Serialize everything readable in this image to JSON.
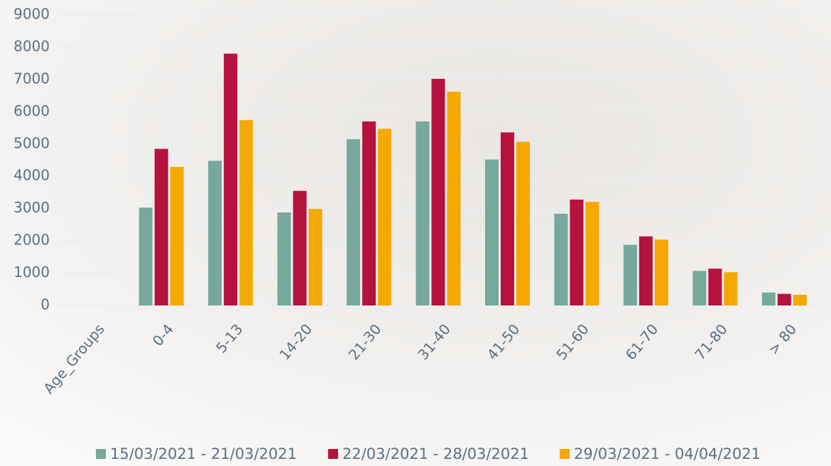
{
  "chart_data": {
    "type": "bar",
    "categories": [
      "Age_Groups",
      "0-4",
      "5-13",
      "14-20",
      "21-30",
      "31-40",
      "41-50",
      "51-60",
      "61-70",
      "71-80",
      "> 80"
    ],
    "series": [
      {
        "name": "15/03/2021 - 21/03/2021",
        "color": "#76a89c",
        "values": [
          null,
          3030,
          4480,
          2880,
          5150,
          5700,
          4520,
          2840,
          1880,
          1070,
          400
        ]
      },
      {
        "name": "22/03/2021 - 28/03/2021",
        "color": "#b5123e",
        "values": [
          null,
          4850,
          7800,
          3550,
          5700,
          7020,
          5360,
          3280,
          2140,
          1140,
          360
        ]
      },
      {
        "name": "29/03/2021 - 04/04/2021",
        "color": "#f5a800",
        "values": [
          null,
          4290,
          5740,
          2990,
          5470,
          6620,
          5070,
          3210,
          2040,
          1030,
          330
        ]
      }
    ],
    "ylim": [
      0,
      9000
    ],
    "yticks": [
      0,
      1000,
      2000,
      3000,
      4000,
      5000,
      6000,
      7000,
      8000,
      9000
    ],
    "grid": true
  }
}
